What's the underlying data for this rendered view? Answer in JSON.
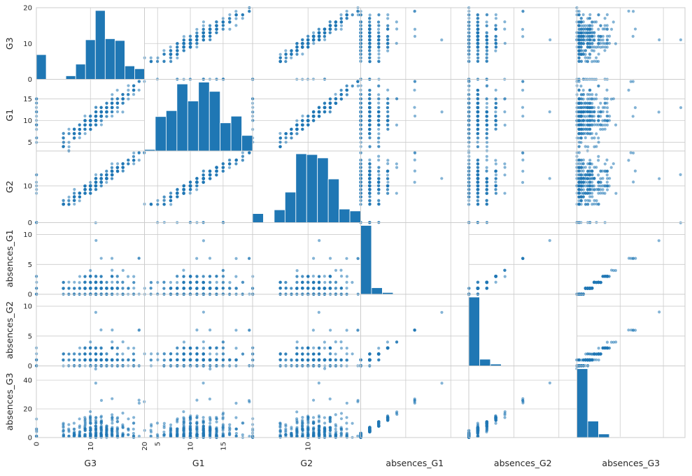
{
  "chart_data": {
    "type": "scatter_matrix",
    "title": "",
    "variables": [
      "G3",
      "G1",
      "G2",
      "absences_G1",
      "absences_G2",
      "absences_G3"
    ],
    "ranges": {
      "G3": [
        0,
        20
      ],
      "G1": [
        3,
        19.5
      ],
      "G2": [
        0,
        19.5
      ],
      "absences_G1": [
        0,
        12
      ],
      "absences_G2": [
        0,
        12
      ],
      "absences_G3": [
        0,
        50
      ]
    },
    "ticks": {
      "G3": [
        "0",
        "10",
        "20"
      ],
      "G1": [
        "5",
        "10",
        "15"
      ],
      "G2": [
        "0",
        "10"
      ],
      "absences_G1": [
        "0",
        "5",
        "10"
      ],
      "absences_G2": [
        "0",
        "5",
        "10"
      ],
      "absences_G3": [
        "0",
        "20",
        "40"
      ]
    },
    "tick_values": {
      "G3": [
        0,
        10,
        20
      ],
      "G1": [
        5,
        10,
        15
      ],
      "G2": [
        0,
        10
      ],
      "absences_G1": [
        0,
        5,
        10
      ],
      "absences_G2": [
        0,
        5,
        10
      ],
      "absences_G3": [
        0,
        20,
        40
      ]
    },
    "x_tick_labels_bottom": {
      "G3": [
        "0",
        "10",
        "20"
      ],
      "G1": [
        "5",
        "10",
        "15"
      ],
      "G2": [
        "10"
      ],
      "absences_G1": [],
      "absences_G2": [],
      "absences_G3": []
    },
    "y_tick_labels_left": {
      "G3": [
        "0",
        "10",
        "20"
      ],
      "G1": [
        "5",
        "10",
        "15"
      ],
      "G2": [
        "0",
        "10"
      ],
      "absences_G1": [
        "0",
        "5",
        "10"
      ],
      "absences_G2": [
        "0",
        "5",
        "10"
      ],
      "absences_G3": [
        "0",
        "20",
        "40"
      ]
    },
    "histograms": {
      "G3": [
        7,
        0,
        0,
        1,
        4.3,
        11.2,
        19.5,
        11.5,
        11,
        3.8,
        3
      ],
      "G1": [
        0.4,
        9.3,
        10.9,
        18.1,
        13.5,
        18.6,
        16.1,
        7.6,
        9.4,
        4.2
      ],
      "G2": [
        2.4,
        0,
        3.4,
        8.1,
        18.3,
        18.1,
        17.2,
        11.6,
        3.6,
        3.1
      ],
      "absences_G1": [
        11.6,
        1.1,
        0.3,
        0,
        0,
        0,
        0,
        0,
        0,
        0
      ],
      "absences_G2": [
        11.3,
        1.1,
        0.3,
        0,
        0,
        0,
        0,
        0,
        0,
        0
      ],
      "absences_G3": [
        46,
        11,
        2.4,
        0.4,
        0,
        0,
        0,
        0,
        0,
        0
      ]
    },
    "grid": true,
    "legend": "none",
    "point_color": "#1f77b4",
    "bar_color": "#1f77b4",
    "background": "#ffffff",
    "grid_color": "#cccccc"
  }
}
